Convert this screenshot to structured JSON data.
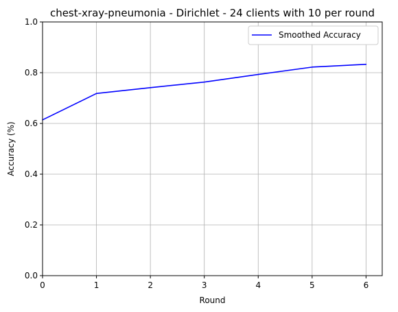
{
  "chart_data": {
    "type": "line",
    "title": "chest-xray-pneumonia - Dirichlet - 24 clients with 10 per round",
    "xlabel": "Round",
    "ylabel": "Accuracy (%)",
    "x": [
      0,
      1,
      2,
      3,
      4,
      5,
      6
    ],
    "series": [
      {
        "name": "Smoothed Accuracy",
        "color": "#0000ff",
        "values": [
          0.614,
          0.718,
          0.741,
          0.763,
          0.793,
          0.822,
          0.833
        ]
      }
    ],
    "xlim": [
      0,
      6.3
    ],
    "ylim": [
      0.0,
      1.0
    ],
    "xticks": [
      "0",
      "1",
      "2",
      "3",
      "4",
      "5",
      "6"
    ],
    "yticks": [
      "0.0",
      "0.2",
      "0.4",
      "0.6",
      "0.8",
      "1.0"
    ],
    "grid": true,
    "legend_position": "top-right"
  }
}
